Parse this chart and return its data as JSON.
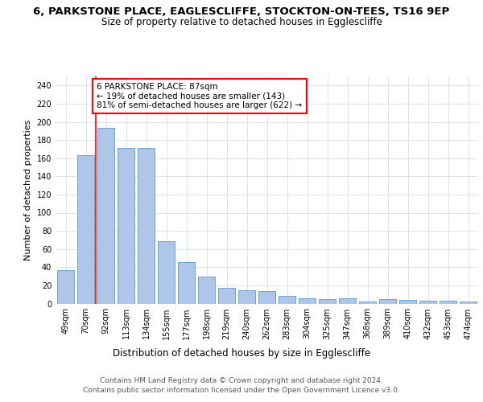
{
  "title_line1": "6, PARKSTONE PLACE, EAGLESCLIFFE, STOCKTON-ON-TEES, TS16 9EP",
  "title_line2": "Size of property relative to detached houses in Egglescliffe",
  "xlabel": "Distribution of detached houses by size in Egglescliffe",
  "ylabel": "Number of detached properties",
  "categories": [
    "49sqm",
    "70sqm",
    "92sqm",
    "113sqm",
    "134sqm",
    "155sqm",
    "177sqm",
    "198sqm",
    "219sqm",
    "240sqm",
    "262sqm",
    "283sqm",
    "304sqm",
    "325sqm",
    "347sqm",
    "368sqm",
    "389sqm",
    "410sqm",
    "432sqm",
    "453sqm",
    "474sqm"
  ],
  "values": [
    37,
    163,
    193,
    171,
    171,
    69,
    46,
    30,
    17,
    15,
    14,
    8,
    6,
    5,
    6,
    2,
    5,
    4,
    3,
    3,
    2
  ],
  "bar_color": "#aec6e8",
  "bar_edge_color": "#5b9bd5",
  "red_line_x": 1.5,
  "annotation_text": "6 PARKSTONE PLACE: 87sqm\n← 19% of detached houses are smaller (143)\n81% of semi-detached houses are larger (622) →",
  "annotation_box_color": "white",
  "annotation_box_edge_color": "red",
  "red_line_color": "red",
  "ylim": [
    0,
    250
  ],
  "yticks": [
    0,
    20,
    40,
    60,
    80,
    100,
    120,
    140,
    160,
    180,
    200,
    220,
    240
  ],
  "grid_color": "#d0d8e8",
  "background_color": "white",
  "footer_line1": "Contains HM Land Registry data © Crown copyright and database right 2024.",
  "footer_line2": "Contains public sector information licensed under the Open Government Licence v3.0.",
  "title_fontsize": 9.5,
  "subtitle_fontsize": 8.5,
  "ylabel_fontsize": 8,
  "xlabel_fontsize": 8.5,
  "tick_fontsize": 7,
  "annotation_fontsize": 7.5,
  "footer_fontsize": 6.5
}
